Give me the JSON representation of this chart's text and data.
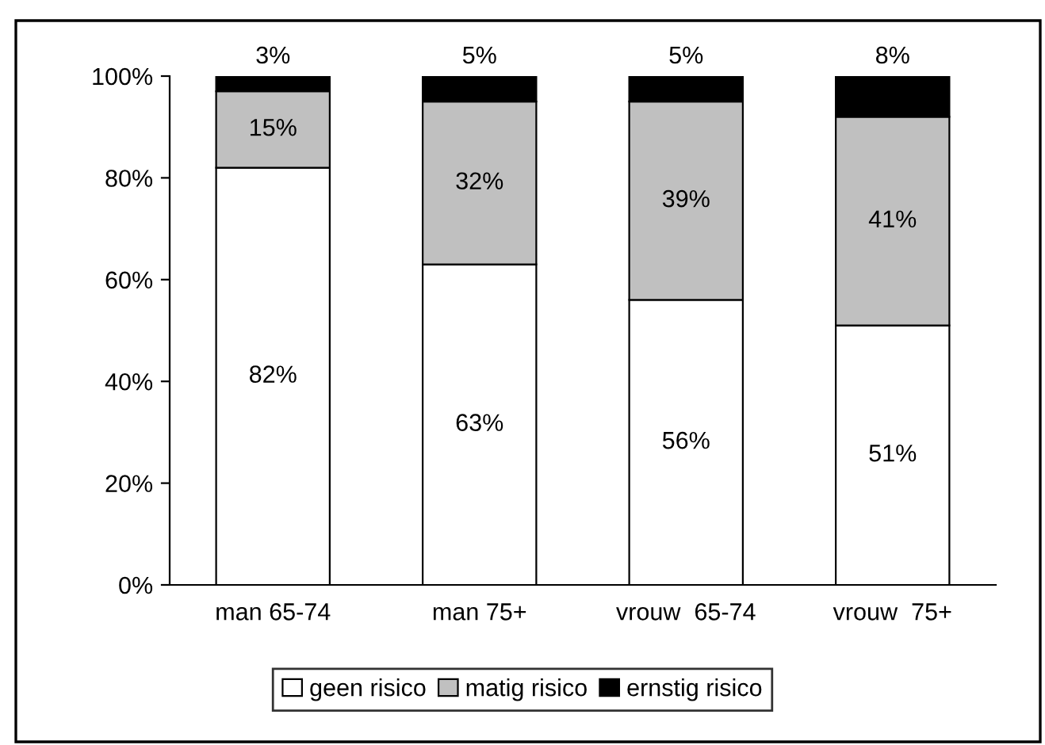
{
  "chart_data": {
    "type": "bar",
    "stacked": true,
    "categories": [
      "man 65-74",
      "man 75+",
      "vrouw  65-74",
      "vrouw  75+"
    ],
    "series": [
      {
        "name": "geen risico",
        "color": "#ffffff",
        "values": [
          82,
          63,
          56,
          51
        ],
        "value_labels": [
          "82%",
          "63%",
          "56%",
          "51%"
        ]
      },
      {
        "name": "matig risico",
        "color": "#c0c0c0",
        "values": [
          15,
          32,
          39,
          41
        ],
        "value_labels": [
          "15%",
          "32%",
          "39%",
          "41%"
        ]
      },
      {
        "name": "ernstig risico",
        "color": "#000000",
        "values": [
          3,
          5,
          5,
          8
        ],
        "value_labels": [
          "3%",
          "5%",
          "5%",
          "8%"
        ]
      }
    ],
    "ylim": [
      0,
      100
    ],
    "yticks": [
      {
        "value": 0,
        "label": "0%"
      },
      {
        "value": 20,
        "label": "20%"
      },
      {
        "value": 40,
        "label": "40%"
      },
      {
        "value": 60,
        "label": "60%"
      },
      {
        "value": 80,
        "label": "80%"
      },
      {
        "value": 100,
        "label": "100%"
      }
    ],
    "legend": "bottom",
    "grid": false
  }
}
